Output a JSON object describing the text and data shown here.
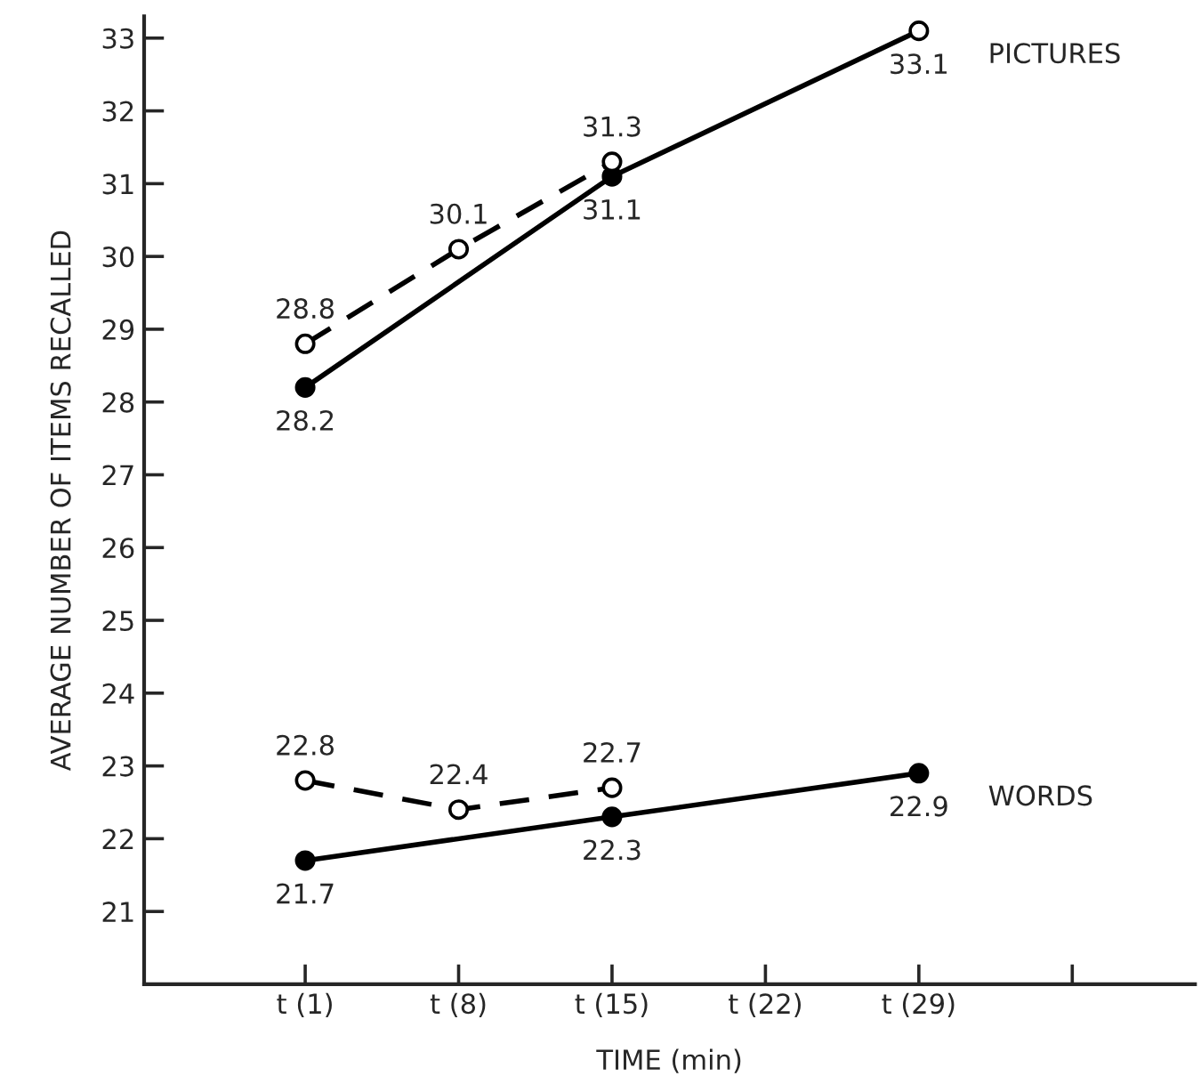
{
  "chart_data": {
    "type": "line",
    "categories": [
      "t (1)",
      "t (8)",
      "t (15)",
      "t (22)",
      "t (29)",
      null
    ],
    "xlabel": "TIME (min)",
    "ylabel": "AVERAGE NUMBER OF ITEMS RECALLED",
    "ylim": [
      20,
      33.3
    ],
    "yticks": [
      21,
      22,
      23,
      24,
      25,
      26,
      27,
      28,
      29,
      30,
      31,
      32,
      33
    ],
    "grid": false,
    "legend": false,
    "data_labels": true,
    "marker": "circle",
    "series": [
      {
        "name": "PICTURES",
        "color": "#000000",
        "line_style": "solid",
        "values": [
          28.2,
          null,
          31.1,
          null,
          33.1,
          null
        ],
        "colors": [
          "#000000",
          null,
          "#000000",
          null,
          "#ffffff",
          null
        ]
      },
      {
        "color": "#000000",
        "line_style": "dashed",
        "values": [
          28.8,
          30.1,
          31.3,
          null,
          null,
          null
        ],
        "colors": [
          "#ffffff",
          "#ffffff",
          "#ffffff",
          null,
          null,
          null
        ]
      },
      {
        "name": "WORDS",
        "color": "#000000",
        "line_style": "solid",
        "values": [
          21.7,
          null,
          22.3,
          null,
          22.9,
          null
        ],
        "colors": [
          "#000000",
          null,
          "#000000",
          null,
          "#000000",
          null
        ]
      },
      {
        "color": "#000000",
        "line_style": "dashed",
        "values": [
          22.8,
          22.4,
          22.7,
          null,
          null,
          null
        ],
        "colors": [
          "#ffffff",
          "#ffffff",
          "#ffffff",
          null,
          null,
          null
        ]
      }
    ]
  }
}
